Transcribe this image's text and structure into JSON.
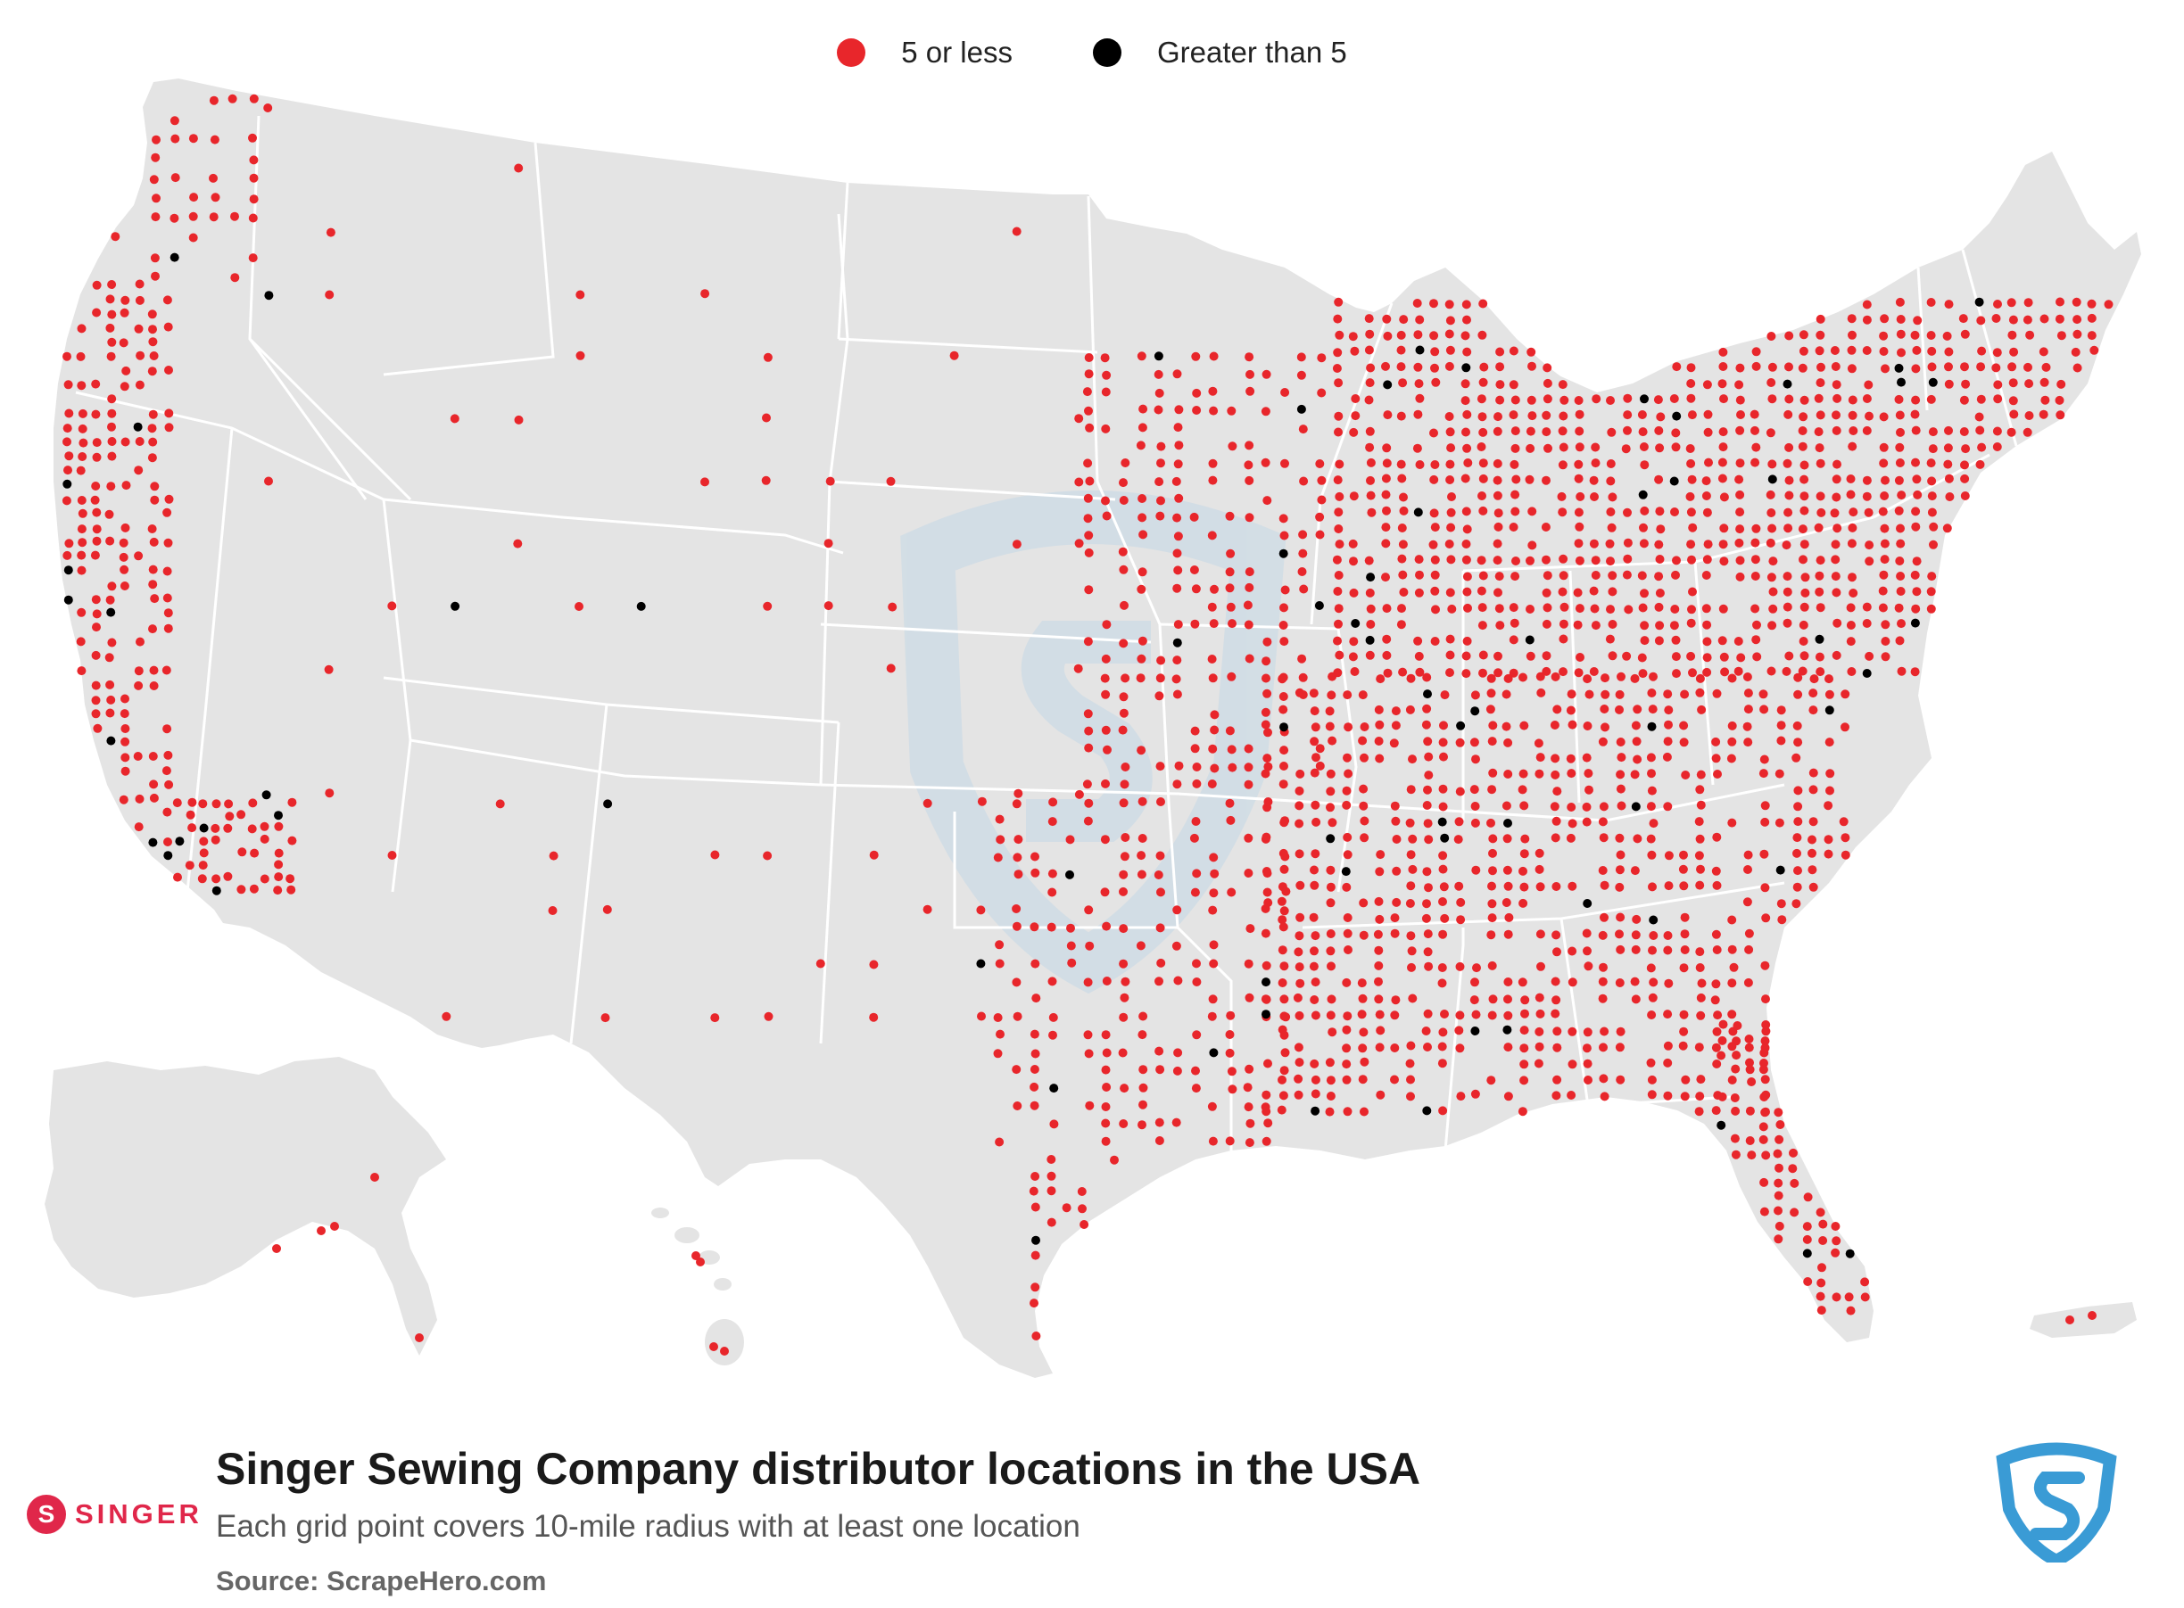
{
  "legend": {
    "items": [
      {
        "label": "5 or less",
        "color": "#e8262b"
      },
      {
        "label": "Greater than 5",
        "color": "#000000"
      }
    ]
  },
  "footer": {
    "title": "Singer Sewing Company distributor locations in the USA",
    "subtitle": "Each grid point covers 10-mile radius with at least one location",
    "source": "Source: ScrapeHero.com"
  },
  "brand": {
    "name": "SINGER",
    "color": "#e0274a"
  },
  "colors": {
    "land": "#e4e4e4",
    "border": "#ffffff",
    "dot_low": "#e8262b",
    "dot_high": "#000000",
    "watermark": "#c5d8e6",
    "logo_blue": "#3a9bd5"
  },
  "icons": {
    "brand_logo": "singer-s-logo-icon",
    "publisher_logo": "scrapehero-shield-icon"
  }
}
